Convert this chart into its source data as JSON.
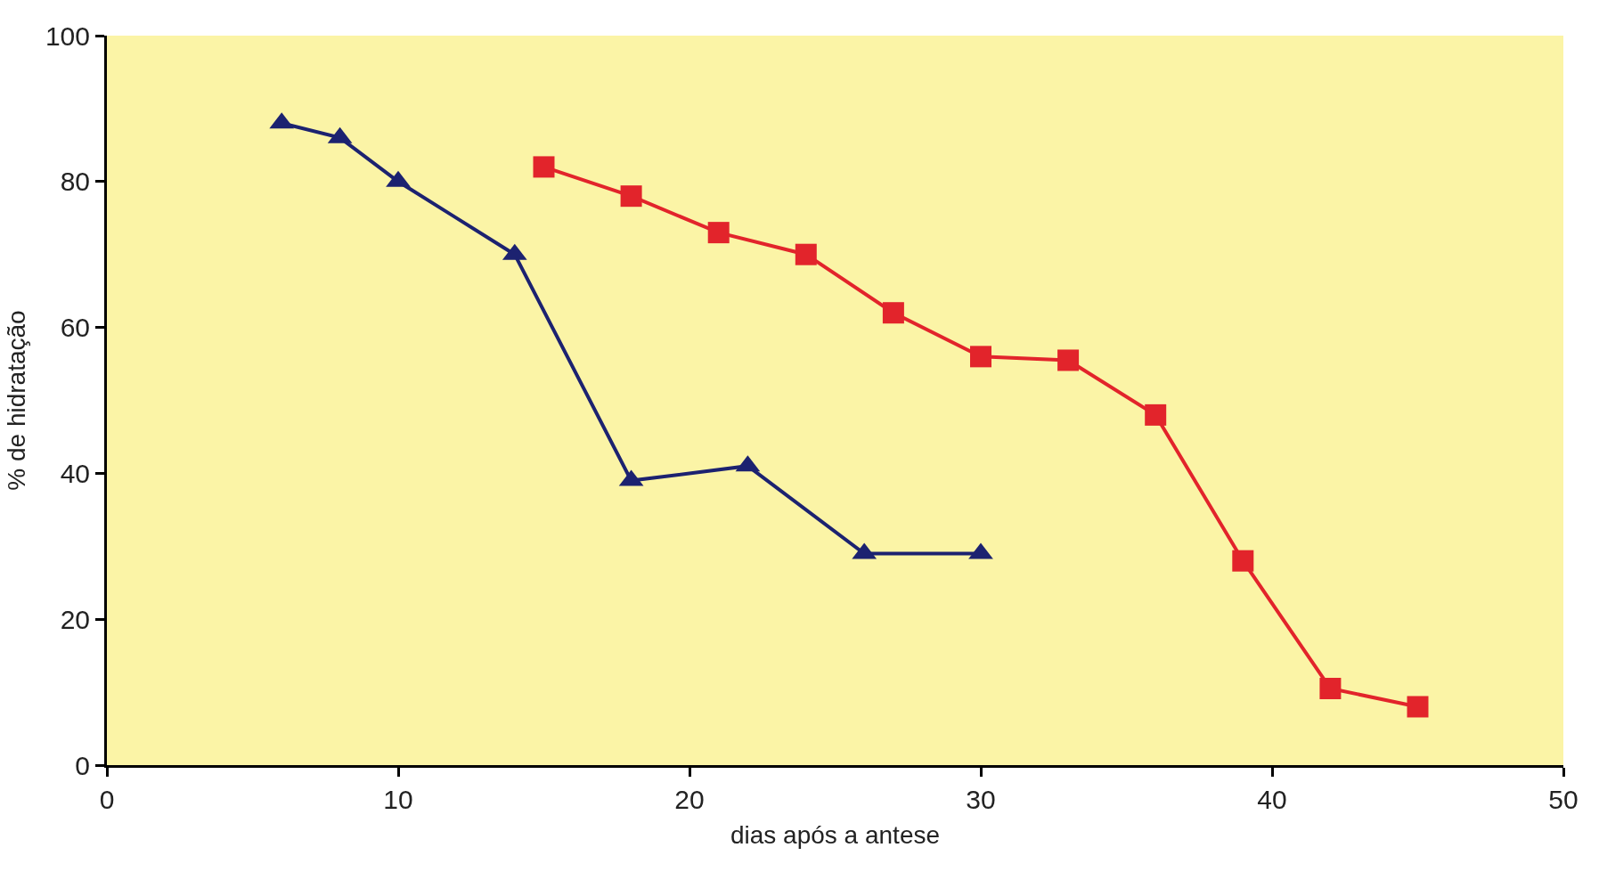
{
  "chart_data": {
    "type": "line",
    "xlabel": "dias após a antese",
    "ylabel": "% de hidratação",
    "xlim": [
      0,
      50
    ],
    "xticks": [
      0,
      10,
      20,
      30,
      40,
      50
    ],
    "ylim": [
      0,
      100
    ],
    "yticks": [
      0,
      20,
      40,
      60,
      80,
      100
    ],
    "grid": false,
    "series": [
      {
        "color": "#1c2270",
        "marker": "triangle",
        "x": [
          6,
          8,
          10,
          14,
          18,
          22,
          26,
          30
        ],
        "values": [
          88,
          86,
          80,
          70,
          39,
          41,
          29,
          29
        ]
      },
      {
        "color": "#e2242b",
        "marker": "square",
        "x": [
          15,
          18,
          21,
          24,
          27,
          30,
          33,
          36,
          39,
          42,
          45
        ],
        "values": [
          82,
          78,
          73,
          70,
          62,
          56,
          55.5,
          48,
          28,
          10.5,
          8
        ]
      }
    ]
  }
}
